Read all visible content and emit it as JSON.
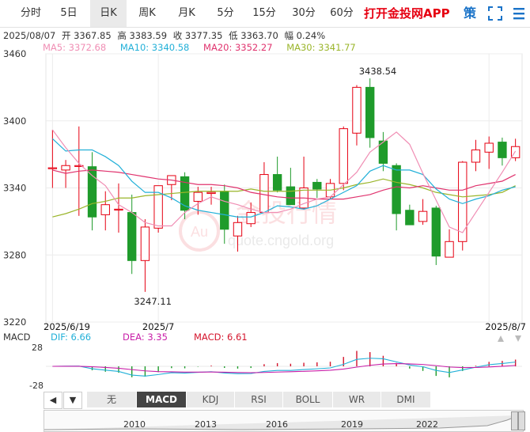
{
  "tabs": [
    {
      "label": "分时",
      "active": false
    },
    {
      "label": "5日",
      "active": false
    },
    {
      "label": "日K",
      "active": true
    },
    {
      "label": "周K",
      "active": false
    },
    {
      "label": "月K",
      "active": false
    },
    {
      "label": "5分",
      "active": false
    },
    {
      "label": "15分",
      "active": false
    },
    {
      "label": "30分",
      "active": false
    },
    {
      "label": "60分",
      "active": false
    }
  ],
  "app_link": "打开金投网APP",
  "strategy_label": "策",
  "info": {
    "date": "2025/08/07",
    "open": "开 3367.85",
    "high": "高 3383.59",
    "close": "收 3377.35",
    "low": "低 3363.70",
    "change": "幅 0.24%"
  },
  "ma": {
    "ma5": "MA5: 3372.68",
    "ma10": "MA10: 3340.58",
    "ma20": "MA20: 3352.27",
    "ma30": "MA30: 3341.77"
  },
  "colors": {
    "up": "#e60012",
    "down": "#1f9b2b",
    "ma5": "#f08eb4",
    "ma10": "#22b0d8",
    "ma20": "#e0336e",
    "ma30": "#9ab52a",
    "dif": "#22b0d8",
    "dea": "#c81ea8",
    "macd": "#d4142c"
  },
  "watermark": {
    "brand": "金投行情",
    "url": "quote.cngold.org"
  },
  "chart_data": {
    "type": "candlestick",
    "y_ticks": [
      "3460",
      "3400",
      "3340",
      "3280",
      "3220"
    ],
    "ylim": [
      3220,
      3460
    ],
    "x_labels": [
      {
        "label": "2025/6/19",
        "index": 0
      },
      {
        "label": "2025/7",
        "index": 8
      },
      {
        "label": "2025/8/7",
        "index": 33
      }
    ],
    "high_annotation": "3438.54",
    "low_annotation": "3247.11",
    "candles": [
      {
        "o": 3358,
        "h": 3392,
        "l": 3340,
        "c": 3358
      },
      {
        "o": 3356,
        "h": 3365,
        "l": 3340,
        "c": 3360
      },
      {
        "o": 3360,
        "h": 3395,
        "l": 3315,
        "c": 3360
      },
      {
        "o": 3359,
        "h": 3372,
        "l": 3302,
        "c": 3314
      },
      {
        "o": 3316,
        "h": 3337,
        "l": 3302,
        "c": 3325
      },
      {
        "o": 3321,
        "h": 3344,
        "l": 3300,
        "c": 3321
      },
      {
        "o": 3318,
        "h": 3334,
        "l": 3263,
        "c": 3275
      },
      {
        "o": 3275,
        "h": 3312,
        "l": 3247,
        "c": 3305
      },
      {
        "o": 3304,
        "h": 3342,
        "l": 3300,
        "c": 3342
      },
      {
        "o": 3343,
        "h": 3350,
        "l": 3329,
        "c": 3351
      },
      {
        "o": 3350,
        "h": 3354,
        "l": 3312,
        "c": 3320
      },
      {
        "o": 3328,
        "h": 3341,
        "l": 3316,
        "c": 3336
      },
      {
        "o": 3335,
        "h": 3341,
        "l": 3325,
        "c": 3336
      },
      {
        "o": 3337,
        "h": 3343,
        "l": 3290,
        "c": 3303
      },
      {
        "o": 3297,
        "h": 3315,
        "l": 3283,
        "c": 3309
      },
      {
        "o": 3308,
        "h": 3327,
        "l": 3305,
        "c": 3318
      },
      {
        "o": 3318,
        "h": 3363,
        "l": 3318,
        "c": 3352
      },
      {
        "o": 3352,
        "h": 3368,
        "l": 3336,
        "c": 3338
      },
      {
        "o": 3341,
        "h": 3358,
        "l": 3325,
        "c": 3325
      },
      {
        "o": 3322,
        "h": 3368,
        "l": 3321,
        "c": 3340
      },
      {
        "o": 3345,
        "h": 3348,
        "l": 3331,
        "c": 3339
      },
      {
        "o": 3332,
        "h": 3348,
        "l": 3330,
        "c": 3344
      },
      {
        "o": 3344,
        "h": 3395,
        "l": 3338,
        "c": 3393
      },
      {
        "o": 3389,
        "h": 3432,
        "l": 3378,
        "c": 3430
      },
      {
        "o": 3430,
        "h": 3438,
        "l": 3376,
        "c": 3385
      },
      {
        "o": 3382,
        "h": 3390,
        "l": 3355,
        "c": 3362
      },
      {
        "o": 3360,
        "h": 3362,
        "l": 3302,
        "c": 3317
      },
      {
        "o": 3320,
        "h": 3325,
        "l": 3307,
        "c": 3307
      },
      {
        "o": 3310,
        "h": 3330,
        "l": 3307,
        "c": 3319
      },
      {
        "o": 3322,
        "h": 3324,
        "l": 3271,
        "c": 3279
      },
      {
        "o": 3278,
        "h": 3303,
        "l": 3278,
        "c": 3292
      },
      {
        "o": 3292,
        "h": 3364,
        "l": 3284,
        "c": 3363
      },
      {
        "o": 3363,
        "h": 3383,
        "l": 3355,
        "c": 3374
      },
      {
        "o": 3372,
        "h": 3386,
        "l": 3357,
        "c": 3380
      },
      {
        "o": 3381,
        "h": 3385,
        "l": 3360,
        "c": 3367
      },
      {
        "o": 3367,
        "h": 3384,
        "l": 3364,
        "c": 3377
      }
    ],
    "ma_lines": {
      "ma5": [
        3392,
        3376,
        3362,
        3351,
        3342,
        3325,
        3318,
        3309,
        3306,
        3306,
        3318,
        3326,
        3332,
        3328,
        3325,
        3321,
        3318,
        3318,
        3321,
        3326,
        3330,
        3332,
        3343,
        3354,
        3372,
        3381,
        3390,
        3379,
        3353,
        3329,
        3305,
        3300,
        3318,
        3336,
        3354,
        3373
      ],
      "ma10": [
        3384,
        3373,
        3374,
        3374,
        3368,
        3360,
        3346,
        3336,
        3336,
        3331,
        3324,
        3320,
        3318,
        3316,
        3314,
        3314,
        3318,
        3324,
        3323,
        3321,
        3324,
        3330,
        3336,
        3342,
        3355,
        3360,
        3356,
        3356,
        3352,
        3339,
        3330,
        3326,
        3330,
        3333,
        3338,
        3341
      ],
      "ma20": [
        3356,
        3353,
        3355,
        3356,
        3355,
        3354,
        3352,
        3350,
        3348,
        3347,
        3345,
        3343,
        3343,
        3342,
        3340,
        3336,
        3334,
        3332,
        3331,
        3331,
        3330,
        3330,
        3330,
        3332,
        3334,
        3338,
        3341,
        3340,
        3342,
        3340,
        3338,
        3338,
        3342,
        3344,
        3346,
        3352
      ],
      "ma30": [
        3314,
        3317,
        3321,
        3326,
        3328,
        3331,
        3331,
        3333,
        3334,
        3335,
        3336,
        3337,
        3337,
        3337,
        3337,
        3339,
        3337,
        3337,
        3337,
        3338,
        3338,
        3338,
        3340,
        3343,
        3345,
        3348,
        3345,
        3343,
        3340,
        3336,
        3334,
        3332,
        3333,
        3334,
        3336,
        3342
      ]
    }
  },
  "macd": {
    "label": "MACD",
    "dif": "DIF: 6.66",
    "dea": "DEA: 3.35",
    "macd": "MACD: 6.61",
    "y_ticks": [
      "28",
      "-28"
    ]
  },
  "indicator_tabs": [
    {
      "label": "无",
      "active": false
    },
    {
      "label": "MACD",
      "active": true
    },
    {
      "label": "KDJ",
      "active": false
    },
    {
      "label": "RSI",
      "active": false
    },
    {
      "label": "BOLL",
      "active": false
    },
    {
      "label": "WR",
      "active": false
    },
    {
      "label": "DMI",
      "active": false
    }
  ],
  "navigator": {
    "years": [
      "2010",
      "2013",
      "2016",
      "2019",
      "2022"
    ],
    "prev": "◀",
    "next": "▼"
  }
}
